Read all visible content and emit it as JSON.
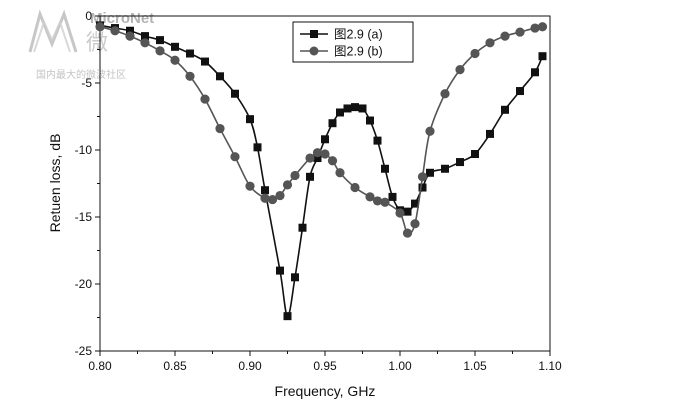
{
  "watermark": {
    "brand": "MicroNet",
    "glyph": "微",
    "tagline": "国内最大的微波社区"
  },
  "chart_data": {
    "type": "line",
    "xlabel": "Frequency, GHz",
    "ylabel": "Retuen loss, dB",
    "xlim": [
      0.8,
      1.1
    ],
    "ylim": [
      -25,
      0
    ],
    "x_ticks": [
      "0.80",
      "0.85",
      "0.90",
      "0.95",
      "1.00",
      "1.05",
      "1.10"
    ],
    "y_ticks": [
      "0",
      "-5",
      "-10",
      "-15",
      "-20",
      "-25"
    ],
    "legend_position": "top-right",
    "grid": false,
    "series": [
      {
        "name": "图2.9 (a)",
        "marker": "square",
        "color": "#111111",
        "x": [
          0.8,
          0.81,
          0.82,
          0.83,
          0.84,
          0.85,
          0.86,
          0.87,
          0.88,
          0.89,
          0.9,
          0.905,
          0.91,
          0.92,
          0.925,
          0.93,
          0.935,
          0.94,
          0.945,
          0.95,
          0.955,
          0.96,
          0.965,
          0.97,
          0.975,
          0.98,
          0.985,
          0.99,
          0.995,
          1.0,
          1.005,
          1.01,
          1.015,
          1.02,
          1.03,
          1.04,
          1.05,
          1.06,
          1.07,
          1.08,
          1.09,
          1.095
        ],
        "y": [
          -0.7,
          -0.9,
          -1.1,
          -1.5,
          -1.8,
          -2.3,
          -2.8,
          -3.4,
          -4.5,
          -5.8,
          -7.7,
          -9.8,
          -13.0,
          -19.0,
          -22.4,
          -19.5,
          -15.8,
          -12.0,
          -10.6,
          -9.2,
          -8.0,
          -7.2,
          -6.9,
          -6.8,
          -6.9,
          -7.8,
          -9.3,
          -11.4,
          -13.5,
          -14.5,
          -14.6,
          -14.0,
          -12.8,
          -11.7,
          -11.4,
          -10.9,
          -10.3,
          -8.8,
          -7.0,
          -5.6,
          -4.2,
          -3.0
        ]
      },
      {
        "name": "图2.9 (b)",
        "marker": "circle",
        "color": "#555555",
        "x": [
          0.8,
          0.81,
          0.82,
          0.83,
          0.84,
          0.85,
          0.86,
          0.87,
          0.88,
          0.89,
          0.9,
          0.91,
          0.915,
          0.92,
          0.925,
          0.93,
          0.94,
          0.945,
          0.95,
          0.955,
          0.96,
          0.97,
          0.98,
          0.985,
          0.99,
          1.0,
          1.005,
          1.01,
          1.015,
          1.02,
          1.03,
          1.04,
          1.05,
          1.06,
          1.07,
          1.08,
          1.09,
          1.095
        ],
        "y": [
          -0.8,
          -1.1,
          -1.5,
          -2.0,
          -2.6,
          -3.3,
          -4.5,
          -6.2,
          -8.4,
          -10.5,
          -12.7,
          -13.6,
          -13.7,
          -13.4,
          -12.6,
          -11.9,
          -10.6,
          -10.2,
          -10.3,
          -10.8,
          -11.7,
          -12.8,
          -13.5,
          -13.8,
          -13.9,
          -14.7,
          -16.2,
          -15.5,
          -12.0,
          -8.6,
          -5.8,
          -4.0,
          -2.8,
          -2.0,
          -1.5,
          -1.2,
          -0.9,
          -0.8
        ]
      }
    ]
  }
}
